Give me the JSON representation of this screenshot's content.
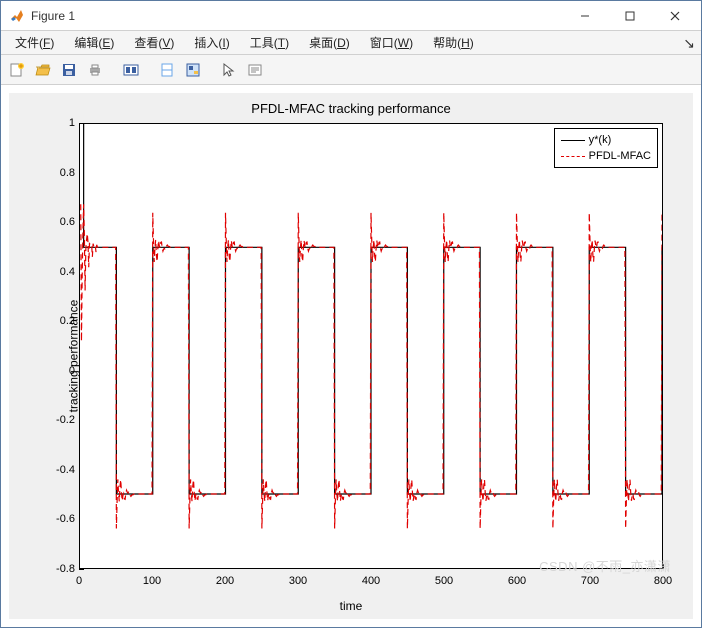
{
  "window": {
    "title": "Figure 1"
  },
  "menu": {
    "items": [
      {
        "label": "文件",
        "mn": "F"
      },
      {
        "label": "编辑",
        "mn": "E"
      },
      {
        "label": "查看",
        "mn": "V"
      },
      {
        "label": "插入",
        "mn": "I"
      },
      {
        "label": "工具",
        "mn": "T"
      },
      {
        "label": "桌面",
        "mn": "D"
      },
      {
        "label": "窗口",
        "mn": "W"
      },
      {
        "label": "帮助",
        "mn": "H"
      }
    ]
  },
  "toolbar": {
    "names": [
      "new-figure",
      "open",
      "save",
      "print",
      "sep",
      "link-axes",
      "sep",
      "pan",
      "data-cursor",
      "sep",
      "pointer",
      "edit-plot"
    ]
  },
  "chart": {
    "type": "line",
    "title": "PFDL-MFAC tracking performance",
    "xlabel": "time",
    "ylabel": "tracking performance",
    "xlim": [
      0,
      800
    ],
    "ylim": [
      -0.8,
      1.0
    ],
    "xticks": [
      0,
      100,
      200,
      300,
      400,
      500,
      600,
      700,
      800
    ],
    "yticks": [
      -0.8,
      -0.6,
      -0.4,
      -0.2,
      0,
      0.2,
      0.4,
      0.6,
      0.8,
      1
    ],
    "background_color": "#ffffff",
    "panel_color": "#f0f0f0",
    "axis_color": "#000000",
    "title_fontsize": 13,
    "label_fontsize": 12,
    "tick_fontsize": 11,
    "period": 100,
    "square_high": 0.5,
    "square_low": -0.5,
    "legend": {
      "position": "top-right",
      "items": [
        {
          "label": "y*(k)",
          "color": "#000000",
          "style": "solid"
        },
        {
          "label": "PFDL-MFAC",
          "color": "#e00000",
          "style": "dashed"
        }
      ]
    },
    "series": [
      {
        "name": "ystar",
        "color": "#000000",
        "style": "solid",
        "width": 1.2
      },
      {
        "name": "pfdl",
        "color": "#e00000",
        "style": "dashed",
        "width": 1.2
      }
    ]
  },
  "watermark": "CSDN @不雨_亦潇潇"
}
